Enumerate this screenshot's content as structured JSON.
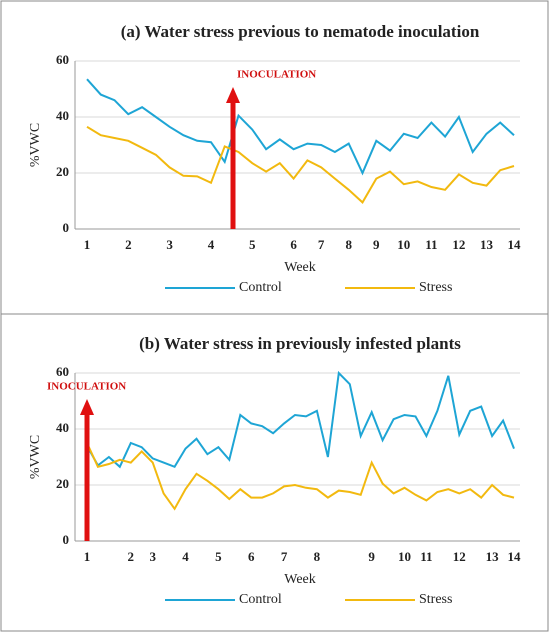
{
  "chart_data": [
    {
      "type": "line",
      "title": "(a) Water stress previous to nematode inoculation",
      "x_label": "Week",
      "y_label": "%VWC",
      "annotation": "INOCULATION",
      "categories": [
        "1",
        null,
        null,
        "2",
        null,
        null,
        "3",
        null,
        null,
        "4",
        null,
        null,
        "5",
        null,
        null,
        "6",
        null,
        "7",
        null,
        "8",
        null,
        "9",
        null,
        "10",
        null,
        "11",
        null,
        "12",
        null,
        "13",
        null,
        "14"
      ],
      "series": [
        {
          "name": "Control",
          "color": "#1ea5d5",
          "values": [
            53.5,
            48,
            46,
            41,
            43.5,
            40,
            36.5,
            33.5,
            31.5,
            31,
            24,
            40.5,
            35.5,
            28.5,
            32,
            28.5,
            30.5,
            30,
            27.5,
            30.5,
            20,
            31.5,
            28,
            34,
            32.5,
            38,
            33,
            40,
            27.5,
            34,
            38,
            33.5
          ]
        },
        {
          "name": "Stress",
          "color": "#f2b90f",
          "values": [
            36.5,
            33.5,
            32.5,
            31.5,
            29,
            26.5,
            22,
            19,
            18.8,
            16.5,
            29.5,
            27.5,
            23.5,
            20.5,
            23.5,
            18,
            24.5,
            22,
            18,
            14,
            9.5,
            18,
            20.5,
            16,
            17,
            15,
            14,
            19.5,
            16.5,
            15.5,
            21,
            22.5
          ]
        }
      ],
      "ylim": [
        0,
        60
      ],
      "yticks": [
        0,
        20,
        40,
        60
      ],
      "grid": true
    },
    {
      "type": "line",
      "title": "(b) Water stress in previously infested plants",
      "x_label": "Week",
      "y_label": "%VWC",
      "annotation": "INOCULATION",
      "categories": [
        "1",
        null,
        null,
        null,
        "2",
        null,
        "3",
        null,
        null,
        "4",
        null,
        null,
        "5",
        null,
        null,
        "6",
        null,
        null,
        "7",
        null,
        null,
        "8",
        null,
        null,
        null,
        null,
        "9",
        null,
        null,
        "10",
        null,
        "11",
        null,
        null,
        "12",
        null,
        null,
        "13",
        null,
        "14"
      ],
      "series": [
        {
          "name": "Control",
          "color": "#1ea5d5",
          "values": [
            34,
            27,
            30,
            26.5,
            35,
            33.5,
            29.5,
            28,
            26.5,
            33,
            36.5,
            31,
            33.5,
            29,
            45,
            42,
            41,
            38.5,
            42,
            45,
            44.5,
            46.5,
            30,
            60,
            56,
            37.5,
            46,
            36,
            43.5,
            45,
            44.5,
            37.5,
            46.5,
            59,
            38,
            46.5,
            48,
            37.5,
            43,
            33
          ]
        },
        {
          "name": "Stress",
          "color": "#f2b90f",
          "values": [
            35,
            26.5,
            27.5,
            29,
            28,
            32,
            28,
            17,
            11.5,
            18.5,
            24,
            21.5,
            18.5,
            15,
            18.5,
            15.5,
            15.5,
            17,
            19.5,
            20,
            19,
            18.5,
            15.5,
            18,
            17.5,
            16.5,
            28,
            20.5,
            17,
            19,
            16.5,
            14.5,
            17.5,
            18.5,
            17,
            18.5,
            15.5,
            20,
            16.5,
            15.5
          ]
        }
      ],
      "ylim": [
        0,
        60
      ],
      "yticks": [
        0,
        20,
        40,
        60
      ],
      "grid": true
    }
  ]
}
